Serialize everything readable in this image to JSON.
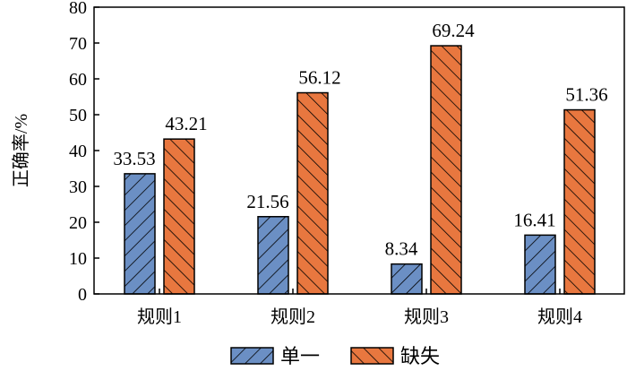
{
  "chart_data": {
    "type": "bar",
    "title": "",
    "xlabel": "",
    "ylabel": "正确率/%",
    "ylim": [
      0,
      80
    ],
    "yticks": [
      0,
      10,
      20,
      30,
      40,
      50,
      60,
      70,
      80
    ],
    "categories": [
      "规则1",
      "规则2",
      "规则3",
      "规则4"
    ],
    "series": [
      {
        "name": "单一",
        "values": [
          33.53,
          21.56,
          8.34,
          16.41
        ],
        "color": "#6b8fc4",
        "hatch": "forward-diagonal"
      },
      {
        "name": "缺失",
        "values": [
          43.21,
          56.12,
          69.24,
          51.36
        ],
        "color": "#e8773f",
        "hatch": "back-diagonal"
      }
    ],
    "data_labels": true,
    "grid": false,
    "legend_position": "bottom"
  }
}
